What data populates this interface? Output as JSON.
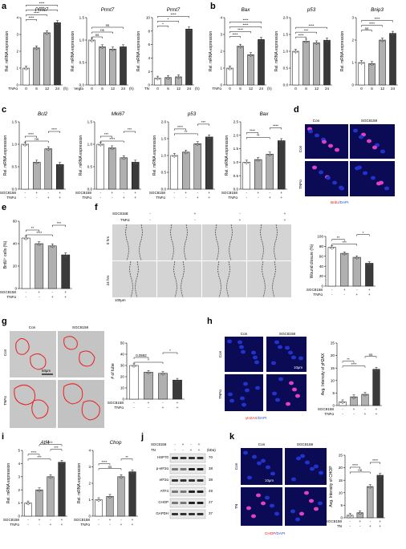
{
  "labels": {
    "a": "a",
    "b": "b",
    "c": "c",
    "d": "d",
    "e": "e",
    "f": "f",
    "g": "g",
    "h": "h",
    "i": "i",
    "j": "j",
    "k": "k"
  },
  "common": {
    "rel_mrna": "Rel. mRNA expression",
    "sgc": "SGC8158",
    "tnfa": "TNFα",
    "tn": "TN",
    "con": "Con",
    "plus": "+",
    "minus": "-",
    "hour_unit": "(h)",
    "ns": "ns",
    "kda": "(kDa)",
    "wound_closure": "Wound closure (%)",
    "brdu_cells": "BrdU⁺ cells (%)",
    "num_tube": "# of tube",
    "avg_h2ax": "Avg. Intensity of γH2AX",
    "avg_chop": "Avg. Intensity of CHOP",
    "brdu_dapi_a": "BrdU",
    "brdu_dapi_b": "/DAPI",
    "h2ax_dapi_a": "γH2AX",
    "h2ax_dapi_b": "/DAPI",
    "chop_dapi_a": "CHOP",
    "chop_dapi_b": "/DAPI",
    "zero_hrs": "0 hrs",
    "hrs24": "24 hrs",
    "sgc_colon": "SGC8158:",
    "tnfa_colon": "TNFα:",
    "p_value": "0.0592",
    "scale_50um": "50μm",
    "scale_10um": "10μm",
    "scale_100um": "100μm",
    "vegfa": "Vegfa"
  },
  "colors": {
    "bar_light": "#ffffff",
    "bar_mid": "#b0b0b0",
    "bar_dark": "#3a3a3a",
    "micro_bg": "#0b0b55",
    "nucleus_blue": "#2233cc",
    "nucleus_pink": "#e040c8",
    "red_text": "#e11",
    "blue_text": "#1b4fd8",
    "tube_red": "#e82020"
  },
  "chart_data": [
    {
      "panel": "a",
      "type": "bar",
      "title": "Prmt7",
      "ylabel": "Rel. mRNA expression",
      "categories": [
        "0",
        "6",
        "12",
        "24"
      ],
      "values": [
        1.0,
        2.2,
        3.1,
        3.7
      ],
      "ylim": [
        0,
        4
      ],
      "yticks": [
        "0",
        "1",
        "2",
        "3",
        "4"
      ],
      "xlabel_left": "TNFα",
      "x_unit": "(h)",
      "sig": [
        "****",
        "****",
        "****",
        "****"
      ]
    },
    {
      "panel": "a",
      "type": "bar",
      "title": "Prmt7",
      "ylabel": "Rel. mRNA expression",
      "categories": [
        "0",
        "6",
        "12",
        "24"
      ],
      "values": [
        1.0,
        0.85,
        0.8,
        0.85
      ],
      "ylim": [
        0,
        1.5
      ],
      "yticks": [
        "0.0",
        "0.5",
        "1.0",
        "1.5"
      ],
      "xlabel_left": "Vegfa",
      "x_unit": "(h)",
      "sig": [
        "ns",
        "ns",
        "ns"
      ]
    },
    {
      "panel": "a",
      "type": "bar",
      "title": "Prmt7",
      "ylabel": "Rel. mRNA expression",
      "categories": [
        "0",
        "6",
        "12",
        "24"
      ],
      "values": [
        1.0,
        1.1,
        1.2,
        8.3
      ],
      "ylim": [
        0,
        10
      ],
      "yticks": [
        "0",
        "2",
        "4",
        "6",
        "8",
        "10"
      ],
      "xlabel_left": "TN",
      "x_unit": "(h)",
      "sig": [
        "*",
        "*",
        "****"
      ]
    },
    {
      "panel": "b",
      "type": "bar",
      "title": "Bax",
      "ylabel": "Rel. mRNA expression",
      "categories": [
        "0",
        "6",
        "12",
        "24"
      ],
      "values": [
        1.0,
        2.3,
        1.8,
        2.7
      ],
      "ylim": [
        0,
        4
      ],
      "yticks": [
        "0",
        "1",
        "2",
        "3",
        "4"
      ],
      "xlabel_left": "TNFα",
      "x_unit": "(h)",
      "sig": [
        "****",
        "****",
        "****",
        "****"
      ]
    },
    {
      "panel": "b",
      "type": "bar",
      "title": "p53",
      "ylabel": "Rel. mRNA expression",
      "categories": [
        "0",
        "6",
        "12",
        "24"
      ],
      "values": [
        1.0,
        1.3,
        1.25,
        1.33
      ],
      "ylim": [
        0,
        2
      ],
      "yticks": [
        "0.0",
        "0.5",
        "1.0",
        "1.5",
        "2.0"
      ],
      "sig": [
        "****",
        "***",
        "****"
      ]
    },
    {
      "panel": "b",
      "type": "bar",
      "title": "Bnip3",
      "ylabel": "Rel. mRNA expression",
      "categories": [
        "0",
        "6",
        "12",
        "24"
      ],
      "values": [
        1.0,
        0.95,
        2.0,
        2.3
      ],
      "ylim": [
        0,
        3
      ],
      "yticks": [
        "0",
        "1",
        "2",
        "3"
      ],
      "sig": [
        "ns",
        "****",
        "****"
      ]
    },
    {
      "panel": "c",
      "type": "bar",
      "title": "Bcl2",
      "ylabel": "Rel. mRNA expression",
      "categories": [
        "1",
        "2",
        "3",
        "4"
      ],
      "values": [
        1.0,
        0.6,
        0.9,
        0.55
      ],
      "ylim": [
        0,
        1.5
      ],
      "yticks": [
        "0.0",
        "0.5",
        "1.0",
        "1.5"
      ],
      "sgc": [
        "-",
        "+",
        "-",
        "+"
      ],
      "tnf": [
        "-",
        "-",
        "+",
        "+"
      ],
      "sig": [
        "ns",
        "****",
        "****"
      ]
    },
    {
      "panel": "c",
      "type": "bar",
      "title": "Mki67",
      "ylabel": "Rel. mRNA expression",
      "categories": [
        "1",
        "2",
        "3",
        "4"
      ],
      "values": [
        1.0,
        0.92,
        0.7,
        0.6
      ],
      "ylim": [
        0,
        1.5
      ],
      "yticks": [
        "0.0",
        "0.5",
        "1.0",
        "1.5"
      ],
      "sgc": [
        "-",
        "+",
        "-",
        "+"
      ],
      "tnf": [
        "-",
        "-",
        "+",
        "+"
      ],
      "sig": [
        "****",
        "***",
        "***"
      ]
    },
    {
      "panel": "c",
      "type": "bar",
      "title": "p53",
      "ylabel": "Rel. mRNA expression",
      "categories": [
        "1",
        "2",
        "3",
        "4"
      ],
      "values": [
        1.0,
        1.1,
        1.35,
        1.55
      ],
      "ylim": [
        0,
        2
      ],
      "yticks": [
        "0.0",
        "0.5",
        "1.0",
        "1.5",
        "2.0"
      ],
      "sgc": [
        "-",
        "+",
        "-",
        "+"
      ],
      "tnf": [
        "-",
        "-",
        "+",
        "+"
      ],
      "sig": [
        "**",
        "****",
        "***"
      ]
    },
    {
      "panel": "c",
      "type": "bar",
      "title": "Bax",
      "ylabel": "Rel. mRNA expression",
      "categories": [
        "1",
        "2",
        "3",
        "4"
      ],
      "values": [
        1.0,
        1.1,
        1.3,
        1.8
      ],
      "ylim": [
        0,
        2.5
      ],
      "yticks": [
        "0.0",
        "0.5",
        "1.0",
        "1.5",
        "2.0",
        "2.5"
      ],
      "sgc": [
        "-",
        "+",
        "-",
        "+"
      ],
      "tnf": [
        "-",
        "-",
        "+",
        "+"
      ],
      "sig": [
        "**",
        "****",
        "****"
      ]
    },
    {
      "panel": "e",
      "type": "bar",
      "ylabel": "BrdU⁺ cells (%)",
      "categories": [
        "1",
        "2",
        "3",
        "4"
      ],
      "values": [
        45,
        40,
        38,
        30
      ],
      "ylim": [
        0,
        60
      ],
      "yticks": [
        "0",
        "20",
        "40",
        "60"
      ],
      "sgc": [
        "-",
        "+",
        "-",
        "+"
      ],
      "tnf": [
        "-",
        "-",
        "+",
        "+"
      ],
      "sig": [
        "****",
        "**",
        "***"
      ]
    },
    {
      "panel": "f",
      "type": "bar",
      "ylabel": "Wound closure (%)",
      "categories": [
        "1",
        "2",
        "3",
        "4"
      ],
      "values": [
        78,
        66,
        58,
        46
      ],
      "ylim": [
        0,
        100
      ],
      "yticks": [
        "0",
        "20",
        "40",
        "60",
        "80",
        "100"
      ],
      "sgc": [
        "-",
        "+",
        "-",
        "+"
      ],
      "tnf": [
        "-",
        "-",
        "+",
        "+"
      ],
      "sig": [
        "***",
        "**",
        "*"
      ]
    },
    {
      "panel": "g",
      "type": "bar",
      "ylabel": "# of tube",
      "categories": [
        "1",
        "2",
        "3",
        "4"
      ],
      "values": [
        30,
        24,
        23,
        17
      ],
      "ylim": [
        0,
        50
      ],
      "yticks": [
        "0",
        "10",
        "20",
        "30",
        "40",
        "50"
      ],
      "sgc": [
        "-",
        "+",
        "-",
        "+"
      ],
      "tnf": [
        "-",
        "-",
        "+",
        "+"
      ],
      "sig": [
        "*",
        "0.0592",
        "*"
      ]
    },
    {
      "panel": "h",
      "type": "bar",
      "ylabel": "Avg. Intensity of γH2AX",
      "categories": [
        "1",
        "2",
        "3",
        "4"
      ],
      "values": [
        1.5,
        3.5,
        4.5,
        14.5
      ],
      "ylim": [
        0,
        25
      ],
      "yticks": [
        "0",
        "5",
        "10",
        "15",
        "20",
        "25"
      ],
      "sgc": [
        "-",
        "+",
        "-",
        "+"
      ],
      "tnf": [
        "-",
        "-",
        "+",
        "+"
      ],
      "sig": [
        "****",
        "**",
        "ns"
      ]
    },
    {
      "panel": "i",
      "type": "bar",
      "title": "Atf4",
      "ylabel": "Rel. mRNA expression",
      "categories": [
        "1",
        "2",
        "3",
        "4"
      ],
      "values": [
        1.0,
        2.0,
        3.0,
        4.1
      ],
      "ylim": [
        0,
        5
      ],
      "yticks": [
        "0",
        "1",
        "2",
        "3",
        "4",
        "5"
      ],
      "sgc": [
        "-",
        "+",
        "-",
        "+"
      ],
      "tnf": [
        "-",
        "-",
        "+",
        "+"
      ],
      "sig": [
        "***",
        "****",
        "***",
        "***"
      ]
    },
    {
      "panel": "i",
      "type": "bar",
      "title": "Chop",
      "ylabel": "Rel. mRNA expression",
      "categories": [
        "1",
        "2",
        "3",
        "4"
      ],
      "values": [
        1.0,
        1.2,
        2.4,
        2.7
      ],
      "ylim": [
        0,
        4
      ],
      "yticks": [
        "0",
        "1",
        "2",
        "3",
        "4"
      ],
      "sgc": [
        "-",
        "+",
        "-",
        "+"
      ],
      "tnf": [
        "-",
        "-",
        "+",
        "+"
      ],
      "sig": [
        "ns",
        "****",
        "**"
      ]
    },
    {
      "panel": "k",
      "type": "bar",
      "ylabel": "Avg. Intensity of CHOP",
      "categories": [
        "1",
        "2",
        "3",
        "4"
      ],
      "values": [
        1.0,
        2.0,
        12.5,
        17.0
      ],
      "ylim": [
        0,
        25
      ],
      "yticks": [
        "0",
        "5",
        "10",
        "15",
        "20",
        "25"
      ],
      "sgc": [
        "-",
        "+",
        "-",
        "+"
      ],
      "tnf": [
        "-",
        "-",
        "+",
        "+"
      ],
      "sig": [
        "ns",
        "****",
        "****"
      ]
    }
  ],
  "western": {
    "sgc_signs": [
      "-",
      "+",
      "-",
      "+"
    ],
    "tn_signs": [
      "-",
      "-",
      "+",
      "+"
    ],
    "bands": [
      {
        "name": "HSP70",
        "kda": "70"
      },
      {
        "name": "p-eIF2α",
        "kda": "38"
      },
      {
        "name": "eIF2α",
        "kda": "38"
      },
      {
        "name": "ATF4",
        "kda": "49"
      },
      {
        "name": "CHOP",
        "kda": "27"
      },
      {
        "name": "GAPDH",
        "kda": "37"
      }
    ]
  }
}
